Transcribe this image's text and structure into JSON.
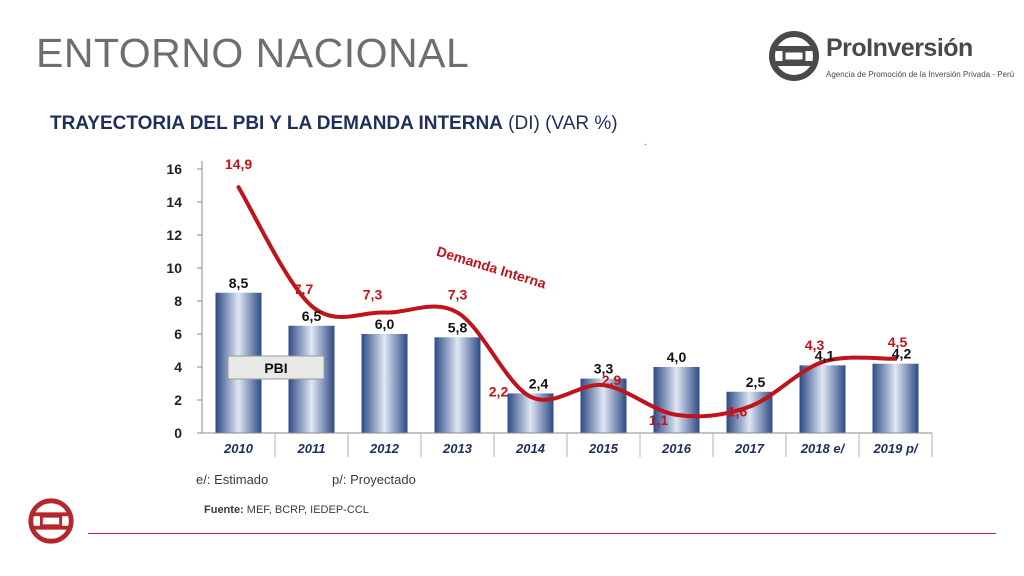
{
  "header": {
    "title": "ENTORNO NACIONAL",
    "subtitle_bold": "TRAYECTORIA DEL PBI Y LA DEMANDA INTERNA",
    "subtitle_rest": " (DI)  (VAR %)",
    "subtitle_dot": "."
  },
  "logo": {
    "name": "ProInversión",
    "tagline": "Agencia de Promoción de la Inversión Privada - Perú"
  },
  "chart_data": {
    "type": "bar",
    "title": "TRAYECTORIA DEL PBI Y LA DEMANDA INTERNA (DI) (VAR %)",
    "categories": [
      "2010",
      "2011",
      "2012",
      "2013",
      "2014",
      "2015",
      "2016",
      "2017",
      "2018 e/",
      "2019 p/"
    ],
    "series": [
      {
        "name": "PBI",
        "kind": "bar",
        "values": [
          8.5,
          6.5,
          6.0,
          5.8,
          2.4,
          3.3,
          4.0,
          2.5,
          4.1,
          4.2
        ],
        "labels": [
          "8,5",
          "6,5",
          "6,0",
          "5,8",
          "2,4",
          "3,3",
          "4,0",
          "2,5",
          "4,1",
          "4,2"
        ]
      },
      {
        "name": "Demanda Interna",
        "kind": "line",
        "values": [
          14.9,
          7.7,
          7.3,
          7.3,
          2.2,
          2.9,
          1.1,
          1.6,
          4.3,
          4.5
        ],
        "labels": [
          "14,9",
          "7,7",
          "7,3",
          "7,3",
          "2,2",
          "2,9",
          "1,1",
          "1,6",
          "4,3",
          "4,5"
        ]
      }
    ],
    "yticks": [
      "0",
      "2",
      "4",
      "6",
      "8",
      "10",
      "12",
      "14",
      "16"
    ],
    "ylim": [
      0,
      16
    ],
    "legend_bar": "PBI",
    "line_label": "Demanda Interna",
    "colors": {
      "bar_dark": "#2d4a86",
      "bar_light": "#dfe6f3",
      "line": "#c0141c",
      "axis": "#1f2f5c"
    }
  },
  "notes": {
    "estimado": "e/: Estimado",
    "proyectado": "p/: Proyectado",
    "source_label": "Fuente:",
    "source_text": " MEF, BCRP,  IEDEP-CCL"
  }
}
